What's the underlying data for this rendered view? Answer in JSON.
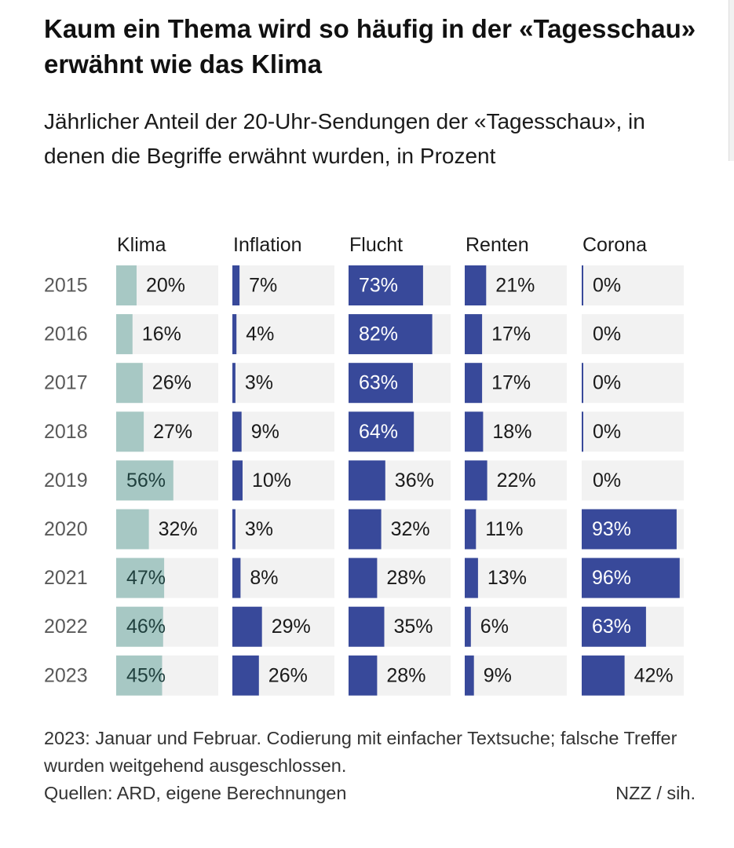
{
  "title": "Kaum ein Thema wird so häufig in der «Tagesschau» erwähnt wie das Klima",
  "subtitle": "Jährlicher Anteil der 20-Uhr-Sendungen der «Tagesschau», in denen die Begriffe erwähnt wurden, in Prozent",
  "footnote": {
    "note": "2023: Januar und Februar. Codierung mit einfacher Textsuche; falsche Treffer wurden weitgehend ausgeschlossen.",
    "sources": "Quellen: ARD, eigene Berechnungen",
    "credit": "NZZ / sih."
  },
  "chart_data": {
    "type": "bar",
    "orientation": "horizontal",
    "layout": "small-multiples",
    "categories": [
      "2015",
      "2016",
      "2017",
      "2018",
      "2019",
      "2020",
      "2021",
      "2022",
      "2023"
    ],
    "xlim": [
      0,
      100
    ],
    "unit": "%",
    "colors": {
      "Klima": "#a7c8c4",
      "other": "#38499a",
      "track": "#f2f2f2"
    },
    "series": [
      {
        "name": "Klima",
        "values": [
          20,
          16,
          26,
          27,
          56,
          32,
          47,
          46,
          45
        ]
      },
      {
        "name": "Inflation",
        "values": [
          7,
          4,
          3,
          9,
          10,
          3,
          8,
          29,
          26
        ]
      },
      {
        "name": "Flucht",
        "values": [
          73,
          82,
          63,
          64,
          36,
          32,
          28,
          35,
          28
        ]
      },
      {
        "name": "Renten",
        "values": [
          21,
          17,
          17,
          18,
          22,
          11,
          13,
          6,
          9
        ]
      },
      {
        "name": "Corona",
        "values": [
          0,
          0,
          0,
          0,
          0,
          93,
          96,
          63,
          42
        ]
      }
    ],
    "value_labels": [
      [
        "20%",
        "16%",
        "26%",
        "27%",
        "56%",
        "32%",
        "47%",
        "46%",
        "45%"
      ],
      [
        "7%",
        "4%",
        "3%",
        "9%",
        "10%",
        "3%",
        "8%",
        "29%",
        "26%"
      ],
      [
        "73%",
        "82%",
        "63%",
        "64%",
        "36%",
        "32%",
        "28%",
        "35%",
        "28%"
      ],
      [
        "21%",
        "17%",
        "17%",
        "18%",
        "22%",
        "11%",
        "13%",
        "6%",
        "9%"
      ],
      [
        "0%",
        "0%",
        "0%",
        "0%",
        "0%",
        "93%",
        "96%",
        "63%",
        "42%"
      ]
    ]
  }
}
